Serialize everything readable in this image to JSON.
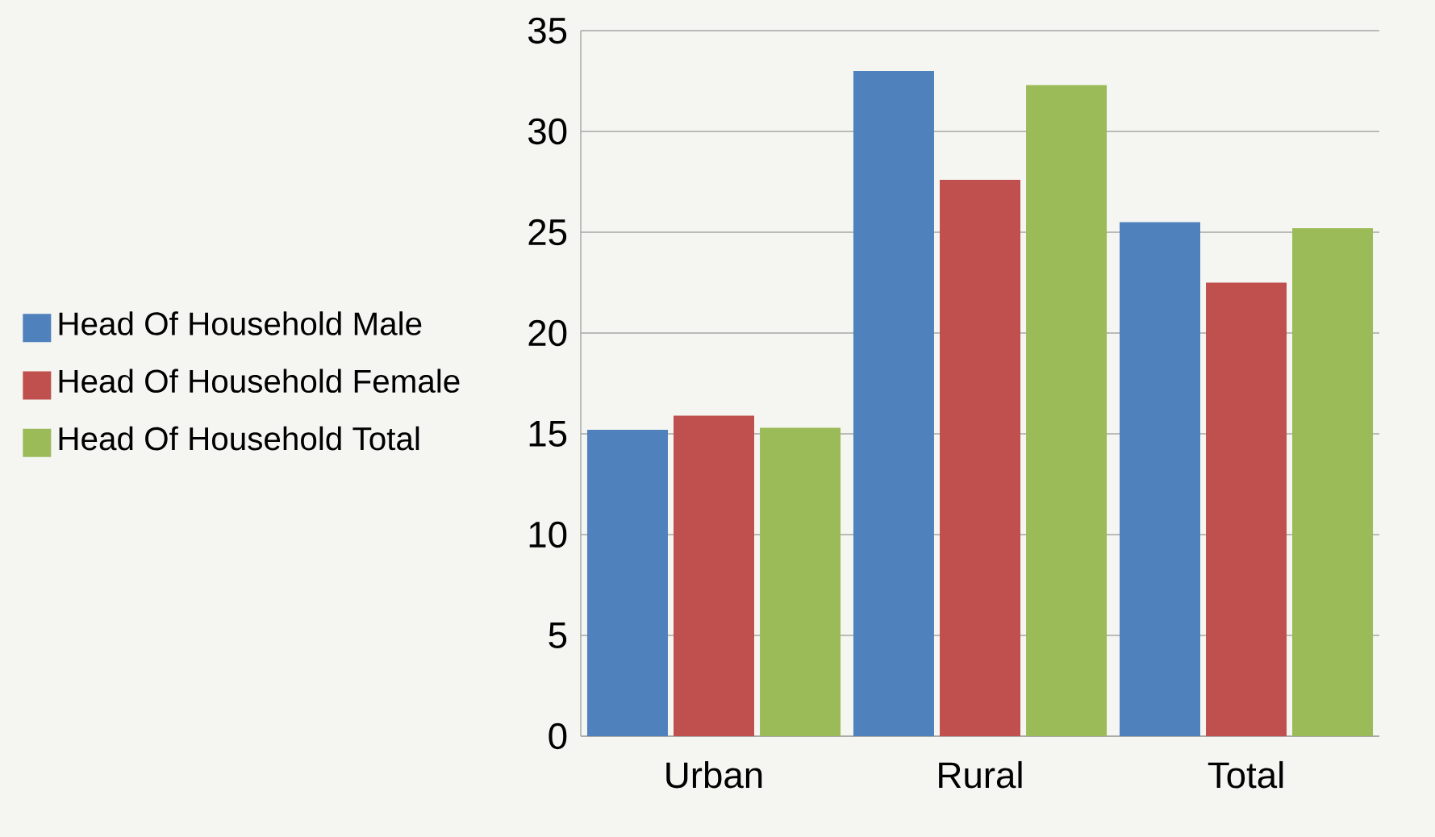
{
  "chart_data": {
    "type": "bar",
    "categories": [
      "Urban",
      "Rural",
      "Total"
    ],
    "series": [
      {
        "name": "Head Of Household Male",
        "color": "#4f81bd",
        "values": [
          15.2,
          33.0,
          25.5
        ]
      },
      {
        "name": "Head Of Household Female",
        "color": "#c0504d",
        "values": [
          15.9,
          27.6,
          22.5
        ]
      },
      {
        "name": "Head Of Household Total",
        "color": "#9bbb59",
        "values": [
          15.3,
          32.3,
          25.2
        ]
      }
    ],
    "ylim": [
      0,
      35
    ],
    "yticks": [
      0,
      5,
      10,
      15,
      20,
      25,
      30,
      35
    ],
    "grid": "y",
    "legend": "left"
  }
}
